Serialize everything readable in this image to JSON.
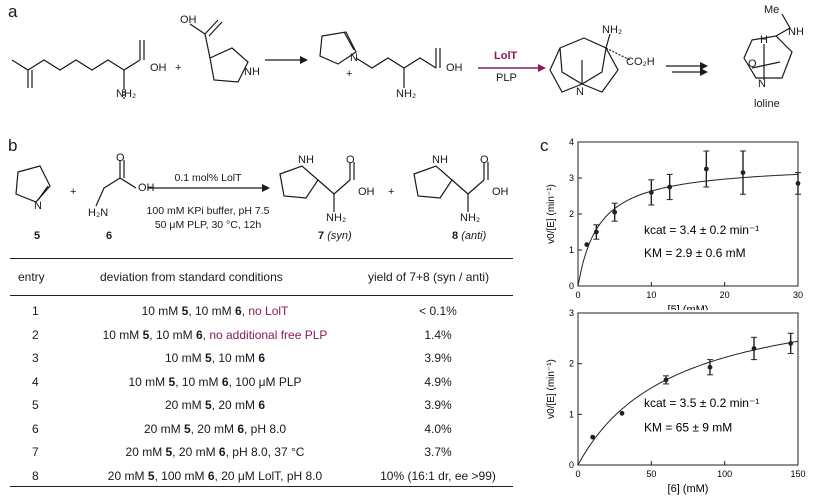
{
  "panels": {
    "a": "a",
    "b": "b",
    "c": "c"
  },
  "scheme_a": {
    "nh2": "NH₂",
    "oh": "OH",
    "nh": "NH",
    "n_plus": "N",
    "plus_sign": "+",
    "enzyme": "LolT",
    "cofactor": "PLP",
    "co2h": "CO₂H",
    "n": "N",
    "me": "Me",
    "product_name": "loline",
    "o": "O",
    "h": "H",
    "plus": "+"
  },
  "scheme_b": {
    "cpd5": "5",
    "cpd6": "6",
    "cpd7": "7",
    "cpd7_label": "(syn)",
    "cpd8": "8",
    "cpd8_label": "(anti)",
    "cond1": "0.1 mol% LolT",
    "cond2": "100 mM KPi buffer, pH 7.5",
    "cond3": "50 μM PLP, 30 °C, 12h",
    "n": "N",
    "nh": "NH",
    "nh2": "NH₂",
    "oh": "OH",
    "o": "O",
    "h2n": "H₂N"
  },
  "table": {
    "headers": {
      "entry": "entry",
      "deviation": "deviation from standard conditions",
      "yield": "yield of 7+8 (syn / anti)"
    },
    "rows": [
      {
        "entry": "1",
        "deviation": "10 mM 5, 10 mM 6, no LolT",
        "yield": "< 0.1%"
      },
      {
        "entry": "2",
        "deviation": "10 mM 5, 10 mM 6, no additional free PLP",
        "yield": "1.4%"
      },
      {
        "entry": "3",
        "deviation": "10 mM 5, 10 mM 6",
        "yield": "3.9%"
      },
      {
        "entry": "4",
        "deviation": "10 mM 5, 10 mM 6, 100 μM PLP",
        "yield": "4.9%"
      },
      {
        "entry": "5",
        "deviation": "20 mM 5, 20 mM 6",
        "yield": "3.9%"
      },
      {
        "entry": "6",
        "deviation": "20 mM 5, 20 mM 6, pH 8.0",
        "yield": "4.0%"
      },
      {
        "entry": "7",
        "deviation": "20 mM 5, 20 mM 6, pH 8.0, 37 °C",
        "yield": "3.7%"
      },
      {
        "entry": "8",
        "deviation": "20 mM 5, 100 mM 6, 20 μM LolT, pH 8.0",
        "yield": "10% (16:1 dr, ee >99)"
      }
    ]
  },
  "colors": {
    "accent": "#8b1a5a",
    "text": "#1a1a1a"
  },
  "chart_data": [
    {
      "type": "scatter",
      "ylabel": "v0/[E] (min⁻¹)",
      "xlabel": "[5] (mM)",
      "xlim": [
        0,
        30
      ],
      "ylim": [
        0,
        4
      ],
      "xticks": [
        0,
        10,
        20,
        30
      ],
      "yticks": [
        0,
        1,
        2,
        3,
        4
      ],
      "points": [
        {
          "x": 1.2,
          "y": 1.15,
          "err": 0.0
        },
        {
          "x": 2.5,
          "y": 1.5,
          "err": 0.2
        },
        {
          "x": 5,
          "y": 2.05,
          "err": 0.25
        },
        {
          "x": 10,
          "y": 2.6,
          "err": 0.35
        },
        {
          "x": 12.5,
          "y": 2.75,
          "err": 0.35
        },
        {
          "x": 17.5,
          "y": 3.25,
          "err": 0.5
        },
        {
          "x": 22.5,
          "y": 3.15,
          "err": 0.6
        },
        {
          "x": 30,
          "y": 2.85,
          "err": 0.3
        }
      ],
      "fit": {
        "kcat": 3.4,
        "KM": 2.9
      },
      "annotation_kcat": "kcat = 3.4 ± 0.2 min⁻¹",
      "annotation_km": "KM = 2.9 ± 0.6 mM",
      "legend": "none",
      "grid": false
    },
    {
      "type": "scatter",
      "ylabel": "v0/[E] (min⁻¹)",
      "xlabel": "[6] (mM)",
      "xlim": [
        0,
        150
      ],
      "ylim": [
        0,
        3
      ],
      "xticks": [
        0,
        50,
        100,
        150
      ],
      "yticks": [
        0,
        1,
        2,
        3
      ],
      "points": [
        {
          "x": 10,
          "y": 0.55,
          "err": 0.0
        },
        {
          "x": 30,
          "y": 1.02,
          "err": 0.0
        },
        {
          "x": 60,
          "y": 1.68,
          "err": 0.08
        },
        {
          "x": 90,
          "y": 1.93,
          "err": 0.15
        },
        {
          "x": 120,
          "y": 2.3,
          "err": 0.22
        },
        {
          "x": 145,
          "y": 2.4,
          "err": 0.2
        }
      ],
      "fit": {
        "kcat": 3.5,
        "KM": 65
      },
      "annotation_kcat": "kcat = 3.5 ± 0.2 min⁻¹",
      "annotation_km": "KM = 65 ± 9 mM",
      "legend": "none",
      "grid": false
    }
  ]
}
